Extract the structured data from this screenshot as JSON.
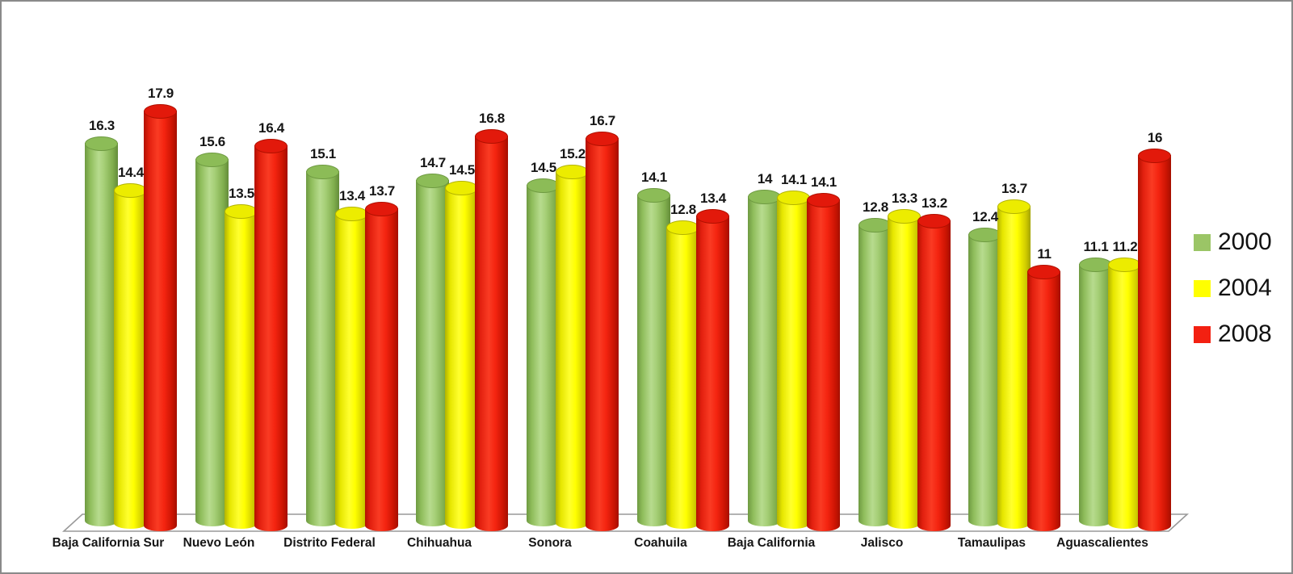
{
  "chart_data": {
    "type": "bar",
    "style": "3d-cylinder-grouped",
    "title": "",
    "xlabel": "",
    "ylabel": "",
    "axes_visible": false,
    "gridlines": false,
    "ylim": [
      0,
      18.5
    ],
    "legend_position": "right",
    "categories": [
      "Baja California Sur",
      "Nuevo León",
      "Distrito Federal",
      "Chihuahua",
      "Sonora",
      "Coahuila",
      "Baja California",
      "Jalisco",
      "Tamaulipas",
      "Aguascalientes"
    ],
    "series": [
      {
        "name": "2000",
        "color": "#9bc566",
        "values": [
          16.3,
          15.6,
          15.1,
          14.7,
          14.5,
          14.1,
          14,
          12.8,
          12.4,
          11.1
        ]
      },
      {
        "name": "2004",
        "color": "#ffff00",
        "values": [
          14.4,
          13.5,
          13.4,
          14.5,
          15.2,
          12.8,
          14.1,
          13.3,
          13.7,
          11.2
        ]
      },
      {
        "name": "2008",
        "color": "#f32011",
        "values": [
          17.9,
          16.4,
          13.7,
          16.8,
          16.7,
          13.4,
          14.1,
          13.2,
          11,
          16
        ]
      }
    ],
    "value_labels_shown": true,
    "floor_outline_color": "#999999",
    "label_color": "#161616",
    "background_color": "#ffffff",
    "border_color": "#8a8a8a"
  }
}
